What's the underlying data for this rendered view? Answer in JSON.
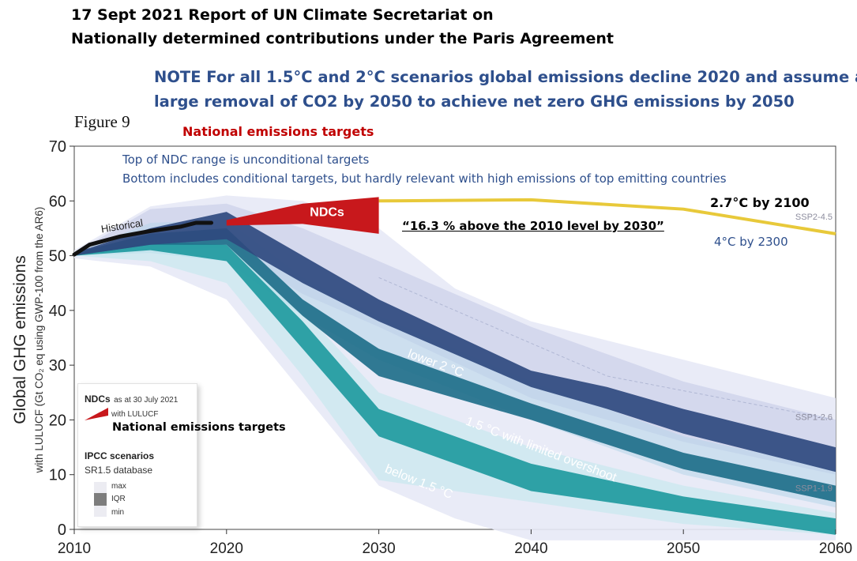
{
  "header": {
    "line1": "17 Sept 2021 Report of UN Climate Secretariat on",
    "line2": "Nationally determined contributions under the Paris Agreement"
  },
  "note": {
    "line1": "NOTE For all 1.5°C and 2°C scenarios global emissions decline 2020 and assume a",
    "line2": "large removal of CO2 by 2050 to achieve net zero GHG emissions by 2050"
  },
  "figure_label": "Figure 9",
  "national_targets_heading": "National emissions targets",
  "annotations": {
    "ndc_top": "Top of NDC range is unconditional targets",
    "ndc_bottom": "Bottom includes conditional targets, but hardly relevant with high emissions of top emitting countries",
    "quote": "“16.3 % above the 2010 level by 2030”",
    "temp_2100": "2.7°C by 2100",
    "temp_2300": "4°C by 2300",
    "national_targets_legend": "National emissions targets"
  },
  "legend": {
    "ndcs_label": "NDCs",
    "ndcs_date": "as at 30 July 2021",
    "with_lulucf": "with LULUCF",
    "ipcc_title": "IPCC scenarios",
    "database": "SR1.5 database",
    "max": "max",
    "iqr": "IQR",
    "min": "min"
  },
  "colors": {
    "lower2c": "#2f4a7f",
    "limited_overshoot": "#1f6f8a",
    "below15": "#1f9aa0",
    "ndc_red": "#c8181c",
    "ssp245": "#e8c93a",
    "historical": "#111111",
    "note_blue": "#2e4f8c"
  },
  "chart_data": {
    "type": "area",
    "title": "",
    "ylabel": "Global GHG emissions",
    "ylabel2": "with LULUCF (Gt CO₂ eq using GWP-100 from the AR6)",
    "xlabel": "",
    "xlim": [
      2010,
      2060
    ],
    "ylim": [
      0,
      70
    ],
    "xticks": [
      2010,
      2020,
      2030,
      2040,
      2050,
      2060
    ],
    "yticks": [
      0,
      10,
      20,
      30,
      40,
      50,
      60,
      70
    ],
    "historical": {
      "name": "Historical",
      "x": [
        2010,
        2011,
        2013,
        2015,
        2017,
        2018,
        2019
      ],
      "y": [
        50.2,
        52.0,
        53.5,
        54.5,
        55.3,
        56.0,
        56.0
      ]
    },
    "ndcs": {
      "name": "NDCs",
      "x": [
        2020,
        2025,
        2030
      ],
      "upper": [
        56.5,
        59.5,
        60.7
      ],
      "lower": [
        55.5,
        55.8,
        54.0
      ]
    },
    "series": [
      {
        "name": "lower 2 °C",
        "x": [
          2010,
          2015,
          2020,
          2025,
          2030,
          2040,
          2045,
          2050,
          2060
        ],
        "outer_upper": [
          50.5,
          58.5,
          59.5,
          55.0,
          49.0,
          37.0,
          32.0,
          27.0,
          20.0
        ],
        "outer_lower": [
          50.0,
          51.0,
          51.5,
          43.0,
          37.0,
          24.0,
          20.0,
          16.0,
          10.0
        ],
        "iqr_upper": [
          50.5,
          55.0,
          58.0,
          50.0,
          42.0,
          29.0,
          26.0,
          22.0,
          15.0
        ],
        "iqr_lower": [
          50.0,
          52.0,
          53.0,
          45.0,
          38.0,
          26.0,
          22.0,
          17.5,
          10.5
        ]
      },
      {
        "name": "1.5 °C with limited overshoot",
        "x": [
          2010,
          2015,
          2020,
          2025,
          2030,
          2040,
          2050,
          2060
        ],
        "outer_upper": [
          50.5,
          56.0,
          56.5,
          46.0,
          39.0,
          27.0,
          17.0,
          11.0
        ],
        "outer_lower": [
          50.0,
          50.5,
          49.0,
          39.0,
          31.0,
          20.0,
          10.0,
          4.0
        ],
        "iqr_upper": [
          50.5,
          54.0,
          55.0,
          42.0,
          33.0,
          23.0,
          14.0,
          8.0
        ],
        "iqr_lower": [
          50.0,
          52.0,
          52.0,
          39.0,
          28.0,
          20.0,
          11.0,
          5.0
        ]
      },
      {
        "name": "below 1.5 °C",
        "x": [
          2010,
          2015,
          2020,
          2025,
          2030,
          2040,
          2050,
          2060
        ],
        "outer_upper": [
          50.5,
          54.0,
          53.0,
          40.0,
          25.0,
          15.0,
          8.0,
          3.0
        ],
        "outer_lower": [
          50.0,
          49.0,
          45.0,
          28.0,
          9.0,
          5.0,
          1.0,
          -1.0
        ],
        "iqr_upper": [
          50.5,
          52.5,
          52.0,
          38.0,
          22.0,
          12.0,
          6.0,
          2.0
        ],
        "iqr_lower": [
          50.0,
          51.0,
          49.0,
          33.0,
          17.0,
          7.0,
          3.0,
          -1.0
        ]
      }
    ],
    "reference_lines": [
      {
        "name": "SSP2-4.5",
        "x": [
          2030,
          2040,
          2050,
          2060
        ],
        "y": [
          60.0,
          60.2,
          58.5,
          54.0
        ]
      },
      {
        "name": "SSP1-2.6",
        "x": [
          2060
        ],
        "y": [
          20.0
        ]
      },
      {
        "name": "SSP1-1.9",
        "x": [
          2060
        ],
        "y": [
          7.0
        ]
      }
    ],
    "series_labels": [
      "lower 2 °C",
      "1.5 °C with limited overshoot",
      "below 1.5 °C"
    ],
    "envelope": {
      "x": [
        2010,
        2015,
        2020,
        2025,
        2030,
        2035,
        2040,
        2050,
        2060
      ],
      "upper": [
        51.0,
        59.0,
        61.0,
        60.0,
        55.0,
        44.0,
        38.0,
        31.0,
        24.0
      ],
      "lower": [
        49.5,
        48.0,
        42.0,
        25.0,
        8.0,
        2.0,
        -2.0,
        -2.0,
        -2.0
      ]
    }
  }
}
